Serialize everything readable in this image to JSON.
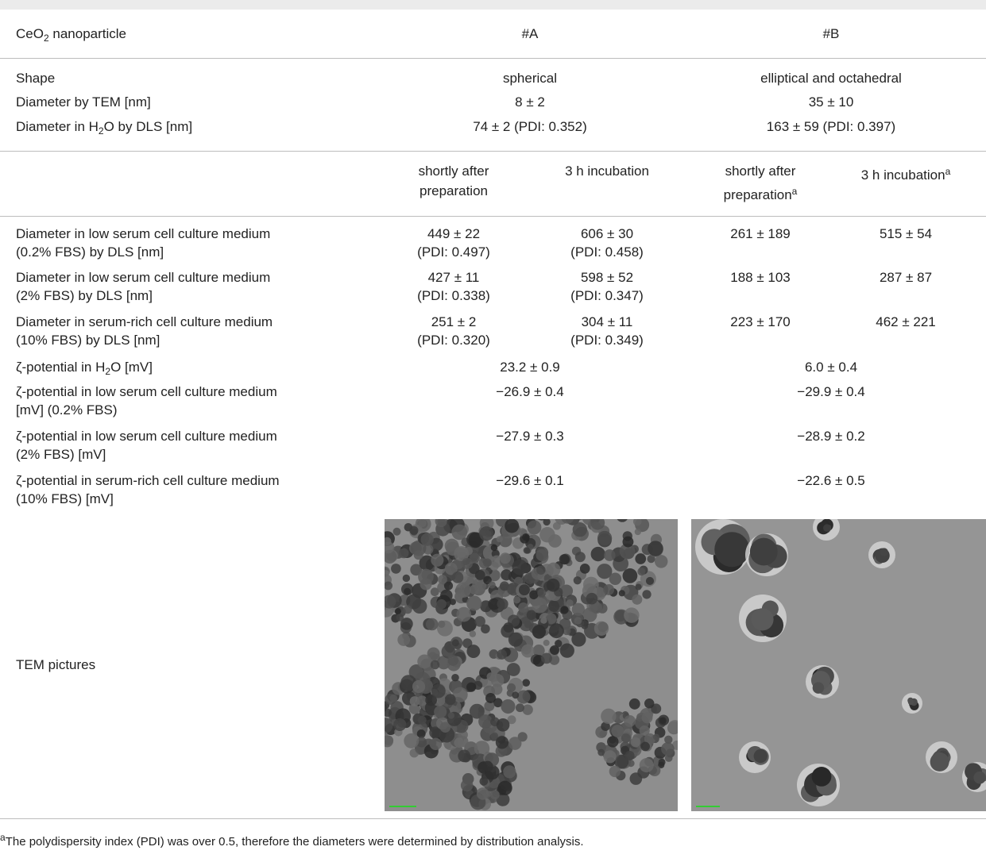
{
  "table": {
    "header": [
      [
        [
          "CeO",
          {
            "sub": "2"
          },
          " nanoparticle"
        ]
      ],
      [
        "#A"
      ],
      [
        "#B"
      ]
    ],
    "general": [
      {
        "label": [
          "Shape"
        ],
        "a": [
          "spherical"
        ],
        "b": [
          "elliptical and octahedral"
        ]
      },
      {
        "label": [
          "Diameter by TEM [nm]"
        ],
        "a": [
          "8 ± 2"
        ],
        "b": [
          "35 ± 10"
        ]
      },
      {
        "label": [
          [
            "Diameter in H",
            {
              "sub": "2"
            },
            "O by DLS [nm]"
          ]
        ],
        "a": [
          "74 ± 2 (PDI: 0.352)"
        ],
        "b": [
          "163 ± 59 (PDI: 0.397)"
        ]
      }
    ],
    "subheader": [
      [
        "shortly after",
        "preparation"
      ],
      [
        "3 h incubation"
      ],
      [
        "shortly after",
        [
          "preparation",
          {
            "sup": "a"
          }
        ]
      ],
      [
        [
          "3 h incubation",
          {
            "sup": "a"
          }
        ]
      ]
    ],
    "dls": [
      {
        "label": [
          "Diameter in low serum cell culture medium",
          "(0.2% FBS) by DLS [nm]"
        ],
        "values": [
          [
            "449 ± 22",
            "(PDI: 0.497)"
          ],
          [
            "606 ± 30",
            "(PDI: 0.458)"
          ],
          [
            "261 ± 189"
          ],
          [
            "515 ± 54"
          ]
        ]
      },
      {
        "label": [
          "Diameter in low serum cell culture medium",
          "(2% FBS) by DLS [nm]"
        ],
        "values": [
          [
            "427 ± 11",
            "(PDI: 0.338)"
          ],
          [
            "598 ± 52",
            "(PDI: 0.347)"
          ],
          [
            "188 ± 103"
          ],
          [
            "287 ± 87"
          ]
        ]
      },
      {
        "label": [
          "Diameter in serum-rich cell culture medium",
          "(10% FBS) by DLS [nm]"
        ],
        "values": [
          [
            "251 ± 2",
            "(PDI: 0.320)"
          ],
          [
            "304 ± 11",
            "(PDI: 0.349)"
          ],
          [
            "223 ± 170"
          ],
          [
            "462 ± 221"
          ]
        ]
      }
    ],
    "zeta": [
      {
        "label": [
          [
            "ζ-potential in H",
            {
              "sub": "2"
            },
            "O [mV]"
          ]
        ],
        "a": [
          "23.2 ± 0.9"
        ],
        "b": [
          "6.0 ± 0.4"
        ]
      },
      {
        "label": [
          "ζ-potential in low serum cell culture medium",
          "[mV] (0.2% FBS)"
        ],
        "a": [
          "−26.9 ± 0.4"
        ],
        "b": [
          "−29.9 ± 0.4"
        ]
      },
      {
        "label": [
          "ζ-potential in low serum cell culture medium",
          "(2% FBS) [mV]"
        ],
        "a": [
          "−27.9 ± 0.3"
        ],
        "b": [
          "−28.9 ± 0.2"
        ]
      },
      {
        "label": [
          "ζ-potential in serum-rich cell culture medium",
          "(10% FBS) [mV]"
        ],
        "a": [
          "−29.6 ± 0.1"
        ],
        "b": [
          "−22.6 ± 0.5"
        ]
      }
    ],
    "tem_label": [
      "TEM pictures"
    ],
    "footnote": [
      [
        {
          "sup": "a"
        },
        "The polydispersity index (PDI) was over 0.5, therefore the diameters were determined by distribution analysis."
      ]
    ]
  }
}
